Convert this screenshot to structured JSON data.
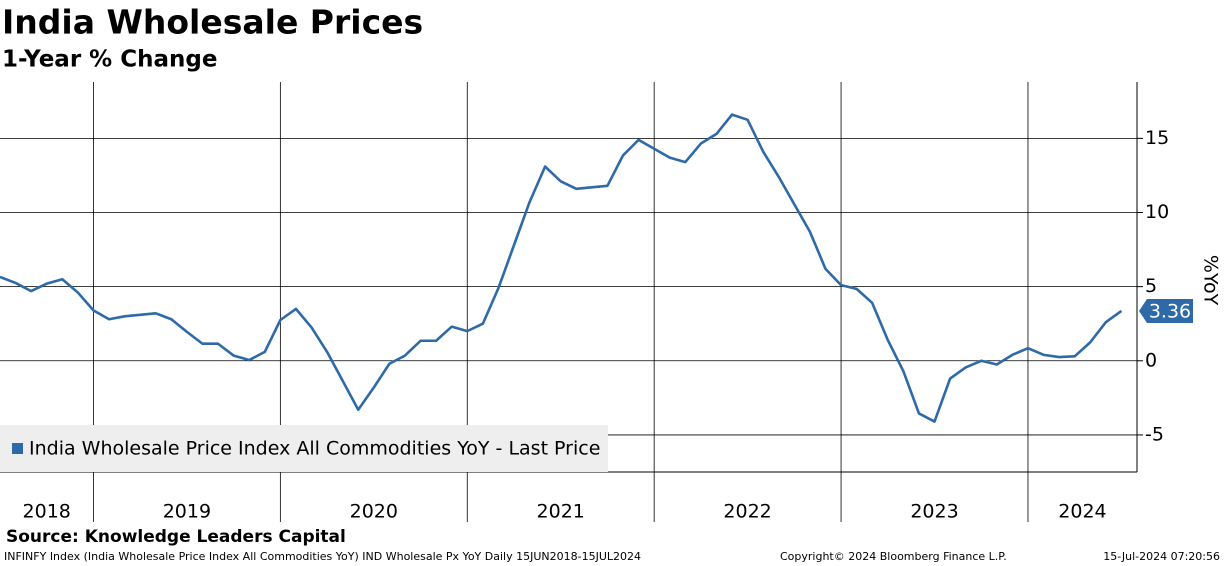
{
  "chart_data": {
    "type": "line",
    "title": "India Wholesale Prices",
    "subtitle": "1-Year % Change",
    "y_axis_label": "%YoY",
    "source": "Source: Knowledge Leaders Capital",
    "footer_left": "INFINFY Index (India Wholesale Price Index All Commodities YoY) IND Wholesale Px YoY  Daily 15JUN2018-15JUL2024",
    "footer_center": "Copyright© 2024 Bloomberg Finance L.P.",
    "footer_right": "15-Jul-2024 07:20:56",
    "x": [
      "2018-07",
      "2018-08",
      "2018-09",
      "2018-10",
      "2018-11",
      "2018-12",
      "2019-01",
      "2019-02",
      "2019-03",
      "2019-04",
      "2019-05",
      "2019-06",
      "2019-07",
      "2019-08",
      "2019-09",
      "2019-10",
      "2019-11",
      "2019-12",
      "2020-01",
      "2020-02",
      "2020-03",
      "2020-04",
      "2020-05",
      "2020-06",
      "2020-07",
      "2020-08",
      "2020-09",
      "2020-10",
      "2020-11",
      "2020-12",
      "2021-01",
      "2021-02",
      "2021-03",
      "2021-04",
      "2021-05",
      "2021-06",
      "2021-07",
      "2021-08",
      "2021-09",
      "2021-10",
      "2021-11",
      "2021-12",
      "2022-01",
      "2022-02",
      "2022-03",
      "2022-04",
      "2022-05",
      "2022-06",
      "2022-07",
      "2022-08",
      "2022-09",
      "2022-10",
      "2022-11",
      "2022-12",
      "2023-01",
      "2023-02",
      "2023-03",
      "2023-04",
      "2023-05",
      "2023-06",
      "2023-07",
      "2023-08",
      "2023-09",
      "2023-10",
      "2023-11",
      "2023-12",
      "2024-01",
      "2024-02",
      "2024-03",
      "2024-04",
      "2024-05",
      "2024-06",
      "2024-07"
    ],
    "xlim": [
      "2018-07",
      "2024-08"
    ],
    "xticks": [
      "2018",
      "2019",
      "2020",
      "2021",
      "2022",
      "2023",
      "2024"
    ],
    "series": [
      {
        "name": "India Wholesale Price Index All Commodities YoY - Last Price",
        "color": "#2e6aa8",
        "values": [
          5.65,
          5.25,
          4.7,
          5.2,
          5.5,
          4.6,
          3.4,
          2.8,
          3.0,
          3.1,
          3.2,
          2.8,
          1.95,
          1.15,
          1.15,
          0.35,
          0.05,
          0.6,
          2.75,
          3.5,
          2.25,
          0.6,
          -1.35,
          -3.3,
          -1.8,
          -0.2,
          0.35,
          1.35,
          1.35,
          2.3,
          2.0,
          2.5,
          4.9,
          7.8,
          10.7,
          13.1,
          12.1,
          11.6,
          11.7,
          11.8,
          13.85,
          14.9,
          14.3,
          13.7,
          13.4,
          14.65,
          15.3,
          16.6,
          16.25,
          14.1,
          12.4,
          10.55,
          8.7,
          6.2,
          5.1,
          4.85,
          3.9,
          1.4,
          -0.7,
          -3.55,
          -4.1,
          -1.2,
          -0.45,
          0,
          -0.25,
          0.4,
          0.85,
          0.4,
          0.25,
          0.3,
          1.25,
          2.6,
          3.36
        ]
      }
    ],
    "ylim": [
      -7.5,
      18.8
    ],
    "yticks": [
      -5,
      0,
      5,
      10,
      15
    ],
    "grid": true,
    "legend": "lower left"
  }
}
